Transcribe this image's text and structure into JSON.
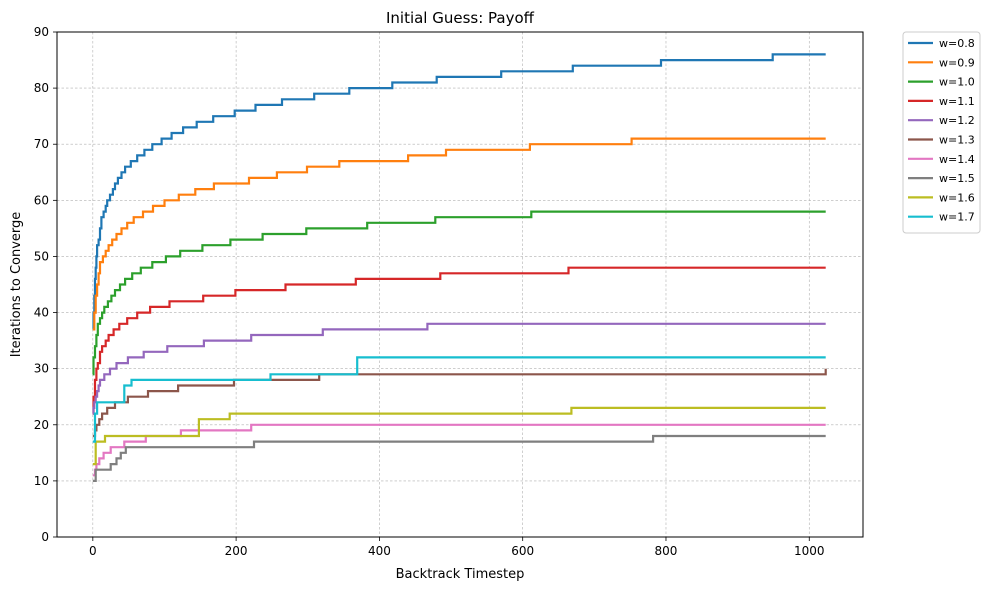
{
  "chart_data": {
    "type": "line",
    "title": "Initial Guess: Payoff",
    "xlabel": "Backtrack Timestep",
    "ylabel": "Iterations to Converge",
    "xlim": [
      -50,
      1075
    ],
    "ylim": [
      0,
      90
    ],
    "xticks": [
      0,
      200,
      400,
      600,
      800,
      1000
    ],
    "yticks": [
      0,
      10,
      20,
      30,
      40,
      50,
      60,
      70,
      80,
      90
    ],
    "grid": true,
    "line_style": "steps",
    "legend_position": "outside upper right",
    "series": [
      {
        "name": "w=0.8",
        "color": "#1f77b4",
        "points": [
          [
            0,
            37
          ],
          [
            1,
            40
          ],
          [
            2,
            43
          ],
          [
            3,
            46
          ],
          [
            4,
            48
          ],
          [
            5,
            50
          ],
          [
            6,
            52
          ],
          [
            8,
            53
          ],
          [
            10,
            55
          ],
          [
            12,
            57
          ],
          [
            15,
            58
          ],
          [
            18,
            59
          ],
          [
            20,
            60
          ],
          [
            24,
            61
          ],
          [
            28,
            62
          ],
          [
            31,
            63
          ],
          [
            35,
            64
          ],
          [
            40,
            65
          ],
          [
            45,
            66
          ],
          [
            53,
            67
          ],
          [
            62,
            68
          ],
          [
            72,
            69
          ],
          [
            83,
            70
          ],
          [
            96,
            71
          ],
          [
            110,
            72
          ],
          [
            126,
            73
          ],
          [
            145,
            74
          ],
          [
            168,
            75
          ],
          [
            198,
            76
          ],
          [
            227,
            77
          ],
          [
            264,
            78
          ],
          [
            309,
            79
          ],
          [
            358,
            80
          ],
          [
            418,
            81
          ],
          [
            480,
            82
          ],
          [
            570,
            83
          ],
          [
            670,
            84
          ],
          [
            793,
            85
          ],
          [
            949,
            86
          ],
          [
            1023,
            86
          ]
        ]
      },
      {
        "name": "w=0.9",
        "color": "#ff7f0e",
        "points": [
          [
            0,
            37
          ],
          [
            2,
            40
          ],
          [
            4,
            43
          ],
          [
            6,
            45
          ],
          [
            8,
            47
          ],
          [
            10,
            49
          ],
          [
            14,
            50
          ],
          [
            18,
            51
          ],
          [
            22,
            52
          ],
          [
            27,
            53
          ],
          [
            33,
            54
          ],
          [
            40,
            55
          ],
          [
            48,
            56
          ],
          [
            57,
            57
          ],
          [
            70,
            58
          ],
          [
            84,
            59
          ],
          [
            100,
            60
          ],
          [
            120,
            61
          ],
          [
            143,
            62
          ],
          [
            169,
            63
          ],
          [
            218,
            64
          ],
          [
            257,
            65
          ],
          [
            299,
            66
          ],
          [
            344,
            67
          ],
          [
            440,
            68
          ],
          [
            493,
            69
          ],
          [
            610,
            70
          ],
          [
            752,
            71
          ],
          [
            939,
            71
          ],
          [
            1023,
            71
          ]
        ]
      },
      {
        "name": "w=1.0",
        "color": "#2ca02c",
        "points": [
          [
            0,
            29
          ],
          [
            1,
            32
          ],
          [
            3,
            34
          ],
          [
            5,
            36
          ],
          [
            7,
            38
          ],
          [
            10,
            39
          ],
          [
            13,
            40
          ],
          [
            16,
            41
          ],
          [
            21,
            42
          ],
          [
            26,
            43
          ],
          [
            31,
            44
          ],
          [
            38,
            45
          ],
          [
            45,
            46
          ],
          [
            55,
            47
          ],
          [
            67,
            48
          ],
          [
            83,
            49
          ],
          [
            102,
            50
          ],
          [
            122,
            51
          ],
          [
            153,
            52
          ],
          [
            192,
            53
          ],
          [
            237,
            54
          ],
          [
            298,
            55
          ],
          [
            383,
            56
          ],
          [
            478,
            57
          ],
          [
            612,
            58
          ],
          [
            789,
            58
          ],
          [
            1023,
            58
          ]
        ]
      },
      {
        "name": "w=1.1",
        "color": "#d62728",
        "points": [
          [
            0,
            22
          ],
          [
            1,
            25
          ],
          [
            3,
            28
          ],
          [
            5,
            30
          ],
          [
            7,
            31
          ],
          [
            10,
            33
          ],
          [
            13,
            34
          ],
          [
            18,
            35
          ],
          [
            22,
            36
          ],
          [
            29,
            37
          ],
          [
            37,
            38
          ],
          [
            48,
            39
          ],
          [
            62,
            40
          ],
          [
            80,
            41
          ],
          [
            107,
            42
          ],
          [
            154,
            43
          ],
          [
            199,
            44
          ],
          [
            269,
            45
          ],
          [
            367,
            46
          ],
          [
            485,
            47
          ],
          [
            664,
            48
          ],
          [
            921,
            48
          ],
          [
            1023,
            48
          ]
        ]
      },
      {
        "name": "w=1.2",
        "color": "#9467bd",
        "points": [
          [
            0,
            22
          ],
          [
            1,
            23
          ],
          [
            2,
            24
          ],
          [
            4,
            25
          ],
          [
            6,
            26
          ],
          [
            8,
            27
          ],
          [
            10,
            28
          ],
          [
            16,
            29
          ],
          [
            24,
            30
          ],
          [
            33,
            31
          ],
          [
            49,
            32
          ],
          [
            71,
            33
          ],
          [
            104,
            34
          ],
          [
            155,
            35
          ],
          [
            221,
            36
          ],
          [
            321,
            37
          ],
          [
            467,
            38
          ],
          [
            691,
            38
          ],
          [
            1023,
            38
          ]
        ]
      },
      {
        "name": "w=1.3",
        "color": "#8c564b",
        "points": [
          [
            0,
            18
          ],
          [
            3,
            19
          ],
          [
            5,
            20
          ],
          [
            9,
            21
          ],
          [
            13,
            22
          ],
          [
            20,
            23
          ],
          [
            31,
            24
          ],
          [
            49,
            25
          ],
          [
            77,
            26
          ],
          [
            119,
            27
          ],
          [
            197,
            28
          ],
          [
            316,
            29
          ],
          [
            528,
            29
          ],
          [
            1023,
            30
          ]
        ]
      },
      {
        "name": "w=1.4",
        "color": "#e377c2",
        "points": [
          [
            0,
            11
          ],
          [
            3,
            12
          ],
          [
            5,
            13
          ],
          [
            9,
            14
          ],
          [
            15,
            15
          ],
          [
            25,
            16
          ],
          [
            44,
            17
          ],
          [
            74,
            18
          ],
          [
            123,
            19
          ],
          [
            221,
            20
          ],
          [
            482,
            20
          ],
          [
            1023,
            20
          ]
        ]
      },
      {
        "name": "w=1.5",
        "color": "#7f7f7f",
        "points": [
          [
            0,
            10
          ],
          [
            4,
            12
          ],
          [
            25,
            13
          ],
          [
            33,
            14
          ],
          [
            39,
            15
          ],
          [
            46,
            16
          ],
          [
            67,
            16
          ],
          [
            90,
            16
          ],
          [
            225,
            17
          ],
          [
            782,
            18
          ],
          [
            1023,
            18
          ]
        ]
      },
      {
        "name": "w=1.6",
        "color": "#bcbd22",
        "points": [
          [
            0,
            13
          ],
          [
            4,
            17
          ],
          [
            17,
            18
          ],
          [
            23,
            18
          ],
          [
            148,
            21
          ],
          [
            191,
            22
          ],
          [
            668,
            23
          ],
          [
            1023,
            23
          ]
        ]
      },
      {
        "name": "w=1.7",
        "color": "#17becf",
        "points": [
          [
            0,
            17
          ],
          [
            3,
            22
          ],
          [
            6,
            24
          ],
          [
            44,
            27
          ],
          [
            54,
            28
          ],
          [
            248,
            29
          ],
          [
            369,
            32
          ],
          [
            1023,
            32
          ]
        ]
      }
    ]
  }
}
